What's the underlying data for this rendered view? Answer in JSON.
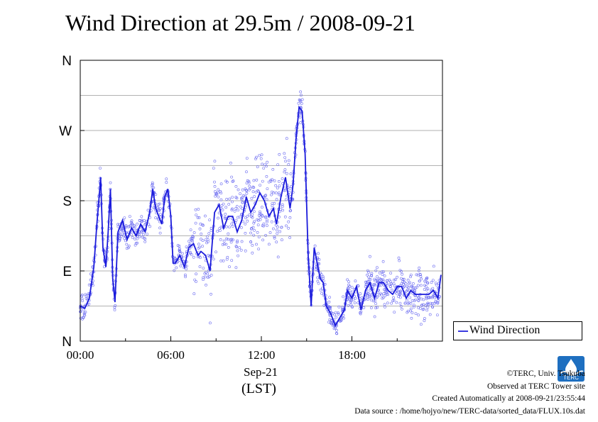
{
  "title": "Wind Direction at 29.5m / 2008-09-21",
  "legend": {
    "label": "Wind Direction"
  },
  "xaxis": {
    "date_label": "Sep-21",
    "unit_label": "(LST)"
  },
  "credits": {
    "line1": "©TERC, Univ. Tsukuba",
    "line2": "Observed at TERC Tower site",
    "line3": "Created Automatically at 2008-09-21/23:55:44",
    "line4": "Data source : /home/hojyo/new/TERC-data/sorted_data/FLUX.10s.dat"
  },
  "logo_text": "TERC",
  "colors": {
    "line": "#1a1adb",
    "scatter": "#6a6af0",
    "grid": "#999999"
  },
  "chart_data": {
    "type": "line",
    "title": "Wind Direction at 29.5m / 2008-09-21",
    "xlabel": "Sep-21 (LST)",
    "ylabel": "",
    "x_unit": "hours (LST)",
    "y_unit": "degrees",
    "xlim": [
      0,
      24
    ],
    "ylim": [
      0,
      360
    ],
    "x_ticks": [
      {
        "value": 0,
        "label": "00:00"
      },
      {
        "value": 6,
        "label": "06:00"
      },
      {
        "value": 12,
        "label": "12:00"
      },
      {
        "value": 18,
        "label": "18:00"
      }
    ],
    "y_ticks": [
      {
        "value": 0,
        "label": "N"
      },
      {
        "value": 90,
        "label": "E"
      },
      {
        "value": 180,
        "label": "S"
      },
      {
        "value": 270,
        "label": "W"
      },
      {
        "value": 360,
        "label": "N"
      }
    ],
    "grid": true,
    "legend_position": "right",
    "series": [
      {
        "name": "Wind Direction",
        "x": [
          0,
          0.3,
          0.6,
          0.9,
          1.1,
          1.25,
          1.35,
          1.5,
          1.7,
          1.85,
          2.0,
          2.15,
          2.3,
          2.5,
          2.8,
          3.1,
          3.4,
          3.7,
          4.0,
          4.3,
          4.6,
          4.8,
          5.0,
          5.2,
          5.4,
          5.6,
          5.8,
          6.0,
          6.15,
          6.3,
          6.6,
          6.9,
          7.2,
          7.5,
          7.8,
          8.0,
          8.3,
          8.6,
          8.9,
          9.2,
          9.5,
          9.8,
          10.1,
          10.4,
          10.7,
          11.0,
          11.3,
          11.6,
          11.9,
          12.2,
          12.5,
          12.8,
          13.0,
          13.3,
          13.6,
          13.9,
          14.1,
          14.3,
          14.5,
          14.7,
          14.9,
          15.1,
          15.3,
          15.5,
          15.7,
          15.9,
          16.1,
          16.3,
          16.6,
          16.9,
          17.2,
          17.5,
          17.7,
          18.0,
          18.3,
          18.6,
          18.9,
          19.2,
          19.5,
          19.8,
          20.1,
          20.4,
          20.7,
          21.0,
          21.3,
          21.6,
          21.9,
          22.2,
          22.5,
          22.8,
          23.1,
          23.4,
          23.7,
          23.9
        ],
        "y": [
          45,
          42,
          55,
          95,
          150,
          185,
          210,
          120,
          95,
          140,
          195,
          80,
          50,
          140,
          155,
          130,
          145,
          135,
          150,
          140,
          165,
          195,
          170,
          160,
          150,
          185,
          195,
          160,
          100,
          100,
          110,
          95,
          120,
          125,
          110,
          115,
          110,
          90,
          165,
          175,
          145,
          160,
          160,
          140,
          155,
          185,
          165,
          175,
          190,
          180,
          160,
          170,
          150,
          185,
          210,
          170,
          200,
          260,
          300,
          295,
          240,
          110,
          45,
          120,
          100,
          80,
          75,
          45,
          35,
          20,
          30,
          40,
          65,
          55,
          70,
          40,
          65,
          75,
          55,
          75,
          75,
          65,
          60,
          70,
          70,
          55,
          65,
          60,
          60,
          60,
          60,
          65,
          55,
          85
        ]
      }
    ]
  }
}
